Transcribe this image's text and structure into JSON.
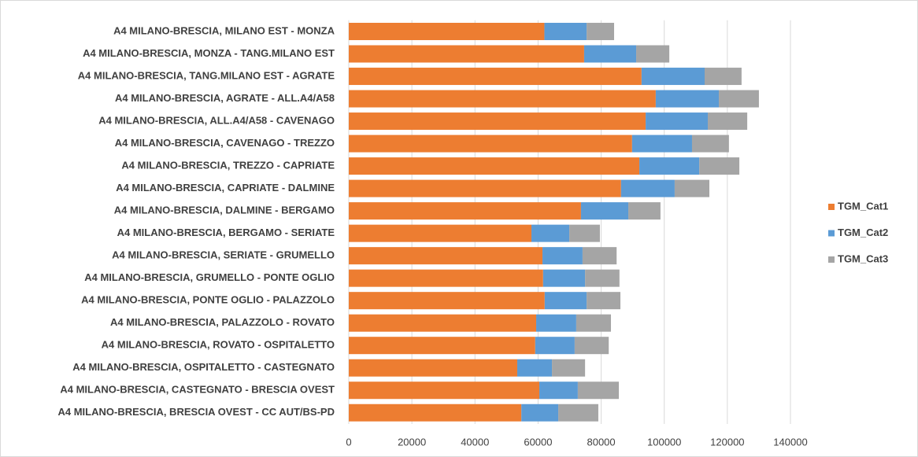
{
  "chart_data": {
    "type": "stacked-bar-horizontal",
    "categories": [
      "A4 MILANO-BRESCIA, MILANO EST - MONZA",
      "A4 MILANO-BRESCIA, MONZA - TANG.MILANO EST",
      "A4 MILANO-BRESCIA, TANG.MILANO EST - AGRATE",
      "A4 MILANO-BRESCIA, AGRATE - ALL.A4/A58",
      "A4 MILANO-BRESCIA, ALL.A4/A58 - CAVENAGO",
      "A4 MILANO-BRESCIA, CAVENAGO - TREZZO",
      "A4 MILANO-BRESCIA, TREZZO - CAPRIATE",
      "A4 MILANO-BRESCIA, CAPRIATE - DALMINE",
      "A4 MILANO-BRESCIA, DALMINE - BERGAMO",
      "A4 MILANO-BRESCIA, BERGAMO - SERIATE",
      "A4 MILANO-BRESCIA, SERIATE - GRUMELLO",
      "A4 MILANO-BRESCIA, GRUMELLO - PONTE OGLIO",
      "A4 MILANO-BRESCIA, PONTE OGLIO - PALAZZOLO",
      "A4 MILANO-BRESCIA, PALAZZOLO - ROVATO",
      "A4 MILANO-BRESCIA, ROVATO - OSPITALETTO",
      "A4 MILANO-BRESCIA, OSPITALETTO - CASTEGNATO",
      "A4 MILANO-BRESCIA, CASTEGNATO - BRESCIA OVEST",
      "A4 MILANO-BRESCIA, BRESCIA OVEST - CC AUT/BS-PD"
    ],
    "series": [
      {
        "name": "TGM_Cat1",
        "color": "#ed7d31",
        "values": [
          62000,
          74600,
          92800,
          97300,
          94100,
          89800,
          92100,
          86300,
          73600,
          57900,
          61400,
          61600,
          62100,
          59400,
          59100,
          53400,
          60400,
          54700
        ]
      },
      {
        "name": "TGM_Cat2",
        "color": "#5b9bd5",
        "values": [
          13400,
          16500,
          20000,
          20000,
          19700,
          19000,
          19000,
          17000,
          15000,
          12000,
          12700,
          13300,
          13300,
          12700,
          12500,
          11000,
          12200,
          11700
        ]
      },
      {
        "name": "TGM_Cat3",
        "color": "#a5a5a5",
        "values": [
          8700,
          10500,
          11700,
          12700,
          12500,
          11700,
          12700,
          11000,
          10200,
          9700,
          10800,
          10900,
          10700,
          11000,
          10800,
          10500,
          13000,
          12700
        ]
      }
    ],
    "xlim": [
      0,
      140000
    ],
    "xticks": [
      0,
      20000,
      40000,
      60000,
      80000,
      100000,
      120000,
      140000
    ],
    "grid": true,
    "legend": "right"
  }
}
